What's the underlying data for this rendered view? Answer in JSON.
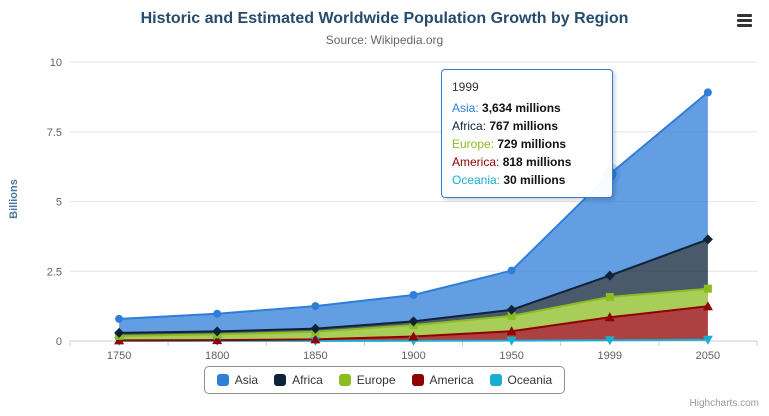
{
  "chart": {
    "title": "Historic and Estimated Worldwide Population Growth by Region",
    "subtitle": "Source: Wikipedia.org",
    "credits": "Highcharts.com"
  },
  "icons": {
    "export_menu": "hamburger-menu-icon"
  },
  "chart_data": {
    "type": "area",
    "stacking": "normal",
    "title": "Historic and Estimated Worldwide Population Growth by Region",
    "subtitle": "Source: Wikipedia.org",
    "xlabel": "",
    "ylabel": "Billions",
    "ylim": [
      0,
      10
    ],
    "yticks": [
      0,
      2.5,
      5,
      7.5,
      10
    ],
    "grid": true,
    "legend_position": "bottom",
    "categories": [
      "1750",
      "1800",
      "1850",
      "1900",
      "1950",
      "1999",
      "2050"
    ],
    "values_unit": "millions",
    "series": [
      {
        "name": "Asia",
        "color": "#2f7ed8",
        "marker": "circle",
        "values": [
          502,
          635,
          809,
          947,
          1402,
          3634,
          5268
        ]
      },
      {
        "name": "Africa",
        "color": "#0d233a",
        "marker": "diamond",
        "values": [
          106,
          107,
          111,
          133,
          221,
          767,
          1766
        ]
      },
      {
        "name": "Europe",
        "color": "#8bbc21",
        "marker": "square",
        "values": [
          163,
          203,
          276,
          408,
          547,
          729,
          628
        ]
      },
      {
        "name": "America",
        "color": "#910000",
        "marker": "triangle",
        "values": [
          18,
          31,
          54,
          156,
          339,
          818,
          1201
        ]
      },
      {
        "name": "Oceania",
        "color": "#1aadce",
        "marker": "triangle-down",
        "values": [
          2,
          2,
          2,
          6,
          13,
          30,
          46
        ]
      }
    ],
    "stack_order_bottom_to_top": [
      "Oceania",
      "America",
      "Europe",
      "Africa",
      "Asia"
    ]
  },
  "tooltip": {
    "header": "1999",
    "rows": [
      {
        "name": "Asia",
        "value": "3,634 millions",
        "color": "#2f7ed8"
      },
      {
        "name": "Africa",
        "value": "767 millions",
        "color": "#0d233a"
      },
      {
        "name": "Europe",
        "value": "729 millions",
        "color": "#8bbc21"
      },
      {
        "name": "America",
        "value": "818 millions",
        "color": "#910000"
      },
      {
        "name": "Oceania",
        "value": "30 millions",
        "color": "#1aadce"
      }
    ]
  }
}
